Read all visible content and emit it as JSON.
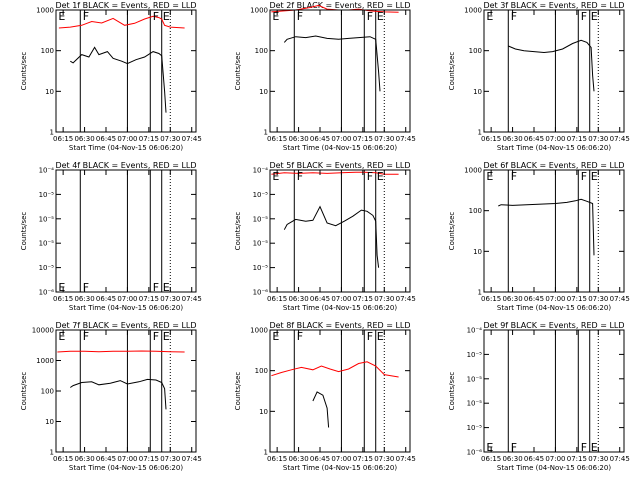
{
  "chart_data": [
    {
      "type": "line",
      "title": "Det 1f BLACK = Events, RED = LLD",
      "xlabel": "Start Time (04-Nov-15 06:06:20)",
      "ylabel": "Counts/sec",
      "yscale": "log",
      "ylim": [
        1,
        1000
      ],
      "ytick_labels": [
        "1",
        "10",
        "100",
        "1000"
      ],
      "xlim": [
        "06:10",
        "07:48"
      ],
      "xtick_labels": [
        "06:15",
        "06:30",
        "06:45",
        "07:00",
        "07:15",
        "07:30",
        "07:45"
      ],
      "solid_vlines": [
        "06:27",
        "07:00",
        "07:16",
        "07:24"
      ],
      "dotted_vlines": [
        "07:30"
      ],
      "flags": [
        {
          "t": "06:11",
          "label": "E",
          "pos": "top"
        },
        {
          "t": "06:28",
          "label": "F",
          "pos": "top"
        },
        {
          "t": "07:17",
          "label": "F",
          "pos": "top"
        },
        {
          "t": "07:24",
          "label": "E",
          "pos": "top"
        }
      ],
      "series": [
        {
          "color": "#ff0000",
          "t": [
            "06:12",
            "06:20",
            "06:28",
            "06:35",
            "06:42",
            "06:50",
            "06:58",
            "07:05",
            "07:12",
            "07:18",
            "07:22",
            "07:24",
            "07:26",
            "07:30",
            "07:40"
          ],
          "v": [
            360,
            380,
            420,
            520,
            480,
            620,
            420,
            470,
            600,
            700,
            650,
            600,
            420,
            380,
            360
          ]
        },
        {
          "color": "#000000",
          "t": [
            "06:20",
            "06:22",
            "06:28",
            "06:33",
            "06:37",
            "06:40",
            "06:46",
            "06:50",
            "06:56",
            "07:00",
            "07:06",
            "07:12",
            "07:18",
            "07:22",
            "07:24",
            "07:26",
            "07:27"
          ],
          "v": [
            55,
            50,
            80,
            70,
            120,
            80,
            95,
            65,
            55,
            48,
            60,
            70,
            95,
            85,
            75,
            10,
            3
          ]
        }
      ]
    },
    {
      "type": "line",
      "title": "Det 2f BLACK = Events, RED = LLD",
      "xlabel": "Start Time (04-Nov-15 06:06:20)",
      "ylabel": "Counts/sec",
      "yscale": "log",
      "ylim": [
        1,
        1000
      ],
      "ytick_labels": [
        "1",
        "10",
        "100",
        "1000"
      ],
      "xlim": [
        "06:10",
        "07:48"
      ],
      "xtick_labels": [
        "06:15",
        "06:30",
        "06:45",
        "07:00",
        "07:15",
        "07:30",
        "07:45"
      ],
      "solid_vlines": [
        "06:27",
        "07:00",
        "07:16",
        "07:24"
      ],
      "dotted_vlines": [
        "07:30"
      ],
      "flags": [
        {
          "t": "06:11",
          "label": "E",
          "pos": "top"
        },
        {
          "t": "06:28",
          "label": "F",
          "pos": "top"
        },
        {
          "t": "07:17",
          "label": "F",
          "pos": "top"
        },
        {
          "t": "07:24",
          "label": "E",
          "pos": "top"
        }
      ],
      "series": [
        {
          "color": "#ff0000",
          "t": [
            "06:11",
            "06:20",
            "06:28",
            "06:38",
            "06:44",
            "06:50",
            "06:58",
            "07:05",
            "07:12",
            "07:20",
            "07:30",
            "07:40"
          ],
          "v": [
            900,
            950,
            1000,
            1150,
            1300,
            1050,
            1000,
            1000,
            1050,
            950,
            900,
            880
          ]
        },
        {
          "color": "#000000",
          "t": [
            "06:20",
            "06:22",
            "06:28",
            "06:35",
            "06:42",
            "06:50",
            "06:58",
            "07:05",
            "07:12",
            "07:20",
            "07:24",
            "07:26",
            "07:27"
          ],
          "v": [
            160,
            190,
            220,
            210,
            230,
            200,
            190,
            200,
            210,
            220,
            190,
            30,
            10
          ]
        }
      ]
    },
    {
      "type": "line",
      "title": "Det 3f BLACK = Events, RED = LLD",
      "xlabel": "Start Time (04-Nov-15 06:06:20)",
      "ylabel": "Counts/sec",
      "yscale": "log",
      "ylim": [
        1,
        1000
      ],
      "ytick_labels": [
        "1",
        "10",
        "100",
        "1000"
      ],
      "xlim": [
        "06:10",
        "07:48"
      ],
      "xtick_labels": [
        "06:15",
        "06:30",
        "06:45",
        "07:00",
        "07:15",
        "07:30",
        "07:45"
      ],
      "solid_vlines": [
        "06:27",
        "07:00",
        "07:16",
        "07:24"
      ],
      "dotted_vlines": [
        "07:30"
      ],
      "flags": [
        {
          "t": "06:11",
          "label": "E",
          "pos": "top"
        },
        {
          "t": "06:28",
          "label": "F",
          "pos": "top"
        },
        {
          "t": "07:17",
          "label": "F",
          "pos": "top"
        },
        {
          "t": "07:24",
          "label": "E",
          "pos": "top"
        }
      ],
      "series": [
        {
          "color": "#000000",
          "t": [
            "06:27",
            "06:32",
            "06:38",
            "06:45",
            "06:52",
            "06:58",
            "07:05",
            "07:12",
            "07:18",
            "07:22",
            "07:25",
            "07:26",
            "07:27"
          ],
          "v": [
            130,
            110,
            100,
            95,
            90,
            95,
            110,
            150,
            180,
            160,
            120,
            25,
            10
          ]
        }
      ]
    },
    {
      "type": "line",
      "title": "Det 4f BLACK = Events, RED = LLD",
      "xlabel": "Start Time (04-Nov-15 06:06:20)",
      "ylabel": "Counts/sec",
      "yscale": "log",
      "ylim": [
        1e-06,
        0.0001
      ],
      "ytick_labels": [
        "10⁻⁶",
        "10⁻⁵",
        "10⁻⁵",
        "10⁻⁵",
        "10⁻⁵",
        "10⁻⁴"
      ],
      "xlim": [
        "06:10",
        "07:48"
      ],
      "xtick_labels": [
        "06:15",
        "06:30",
        "06:45",
        "07:00",
        "07:15",
        "07:30",
        "07:45"
      ],
      "solid_vlines": [
        "06:27",
        "07:00",
        "07:16",
        "07:24"
      ],
      "dotted_vlines": [
        "07:30"
      ],
      "flags": [
        {
          "t": "06:11",
          "label": "E",
          "pos": "bottom"
        },
        {
          "t": "06:28",
          "label": "F",
          "pos": "bottom"
        },
        {
          "t": "07:17",
          "label": "F",
          "pos": "bottom"
        },
        {
          "t": "07:24",
          "label": "E",
          "pos": "bottom"
        }
      ],
      "series": []
    },
    {
      "type": "line",
      "title": "Det 5f BLACK = Events, RED = LLD",
      "xlabel": "Start Time (04-Nov-15 06:06:20)",
      "ylabel": "Counts/sec",
      "yscale": "log",
      "ylim": [
        1e-06,
        0.0001
      ],
      "ytick_labels": [
        "10⁻⁶",
        "10⁻⁵",
        "10⁻⁵",
        "10⁻⁵",
        "10⁻⁵",
        "10⁻⁴"
      ],
      "xlim": [
        "06:10",
        "07:48"
      ],
      "xtick_labels": [
        "06:15",
        "06:30",
        "06:45",
        "07:00",
        "07:15",
        "07:30",
        "07:45"
      ],
      "solid_vlines": [
        "06:27",
        "07:00",
        "07:16",
        "07:24"
      ],
      "dotted_vlines": [
        "07:30"
      ],
      "flags": [
        {
          "t": "06:11",
          "label": "E",
          "pos": "top"
        },
        {
          "t": "06:28",
          "label": "F",
          "pos": "top"
        },
        {
          "t": "07:17",
          "label": "F",
          "pos": "top"
        },
        {
          "t": "07:24",
          "label": "E",
          "pos": "top"
        }
      ],
      "series": [
        {
          "color": "#ff0000",
          "t": [
            "06:11",
            "06:20",
            "06:30",
            "06:40",
            "06:50",
            "07:00",
            "07:10",
            "07:16",
            "07:24",
            "07:30",
            "07:40"
          ],
          "v": [
            8.5e-05,
            9e-05,
            8.8e-05,
            9e-05,
            8.8e-05,
            9e-05,
            9.2e-05,
            9.2e-05,
            9e-05,
            8.5e-05,
            8.5e-05
          ]
        },
        {
          "color": "#000000",
          "t": [
            "06:20",
            "06:22",
            "06:28",
            "06:35",
            "06:40",
            "06:45",
            "06:50",
            "06:56",
            "07:02",
            "07:08",
            "07:14",
            "07:18",
            "07:22",
            "07:24",
            "07:25",
            "07:26"
          ],
          "v": [
            1.05e-05,
            1.28e-05,
            1.55e-05,
            1.45e-05,
            1.5e-05,
            2.5e-05,
            1.35e-05,
            1.22e-05,
            1.45e-05,
            1.75e-05,
            2.2e-05,
            2.1e-05,
            1.8e-05,
            1.45e-05,
            4e-06,
            2.5e-06
          ]
        }
      ]
    },
    {
      "type": "line",
      "title": "Det 6f BLACK = Events, RED = LLD",
      "xlabel": "Start Time (04-Nov-15 06:06:20)",
      "ylabel": "Counts/sec",
      "yscale": "log",
      "ylim": [
        1,
        1000
      ],
      "ytick_labels": [
        "1",
        "10",
        "100",
        "1000"
      ],
      "xlim": [
        "06:10",
        "07:48"
      ],
      "xtick_labels": [
        "06:15",
        "06:30",
        "06:45",
        "07:00",
        "07:15",
        "07:30",
        "07:45"
      ],
      "solid_vlines": [
        "06:27",
        "07:00",
        "07:16",
        "07:24"
      ],
      "dotted_vlines": [
        "07:30"
      ],
      "flags": [
        {
          "t": "06:11",
          "label": "E",
          "pos": "top"
        },
        {
          "t": "06:28",
          "label": "F",
          "pos": "top"
        },
        {
          "t": "07:17",
          "label": "F",
          "pos": "top"
        },
        {
          "t": "07:24",
          "label": "E",
          "pos": "top"
        }
      ],
      "series": [
        {
          "color": "#000000",
          "t": [
            "06:20",
            "06:22",
            "06:30",
            "06:40",
            "06:50",
            "07:00",
            "07:08",
            "07:14",
            "07:18",
            "07:22",
            "07:26",
            "07:27"
          ],
          "v": [
            130,
            140,
            135,
            140,
            145,
            150,
            160,
            175,
            190,
            170,
            150,
            8
          ]
        }
      ]
    },
    {
      "type": "line",
      "title": "Det 7f BLACK = Events, RED = LLD",
      "xlabel": "Start Time (04-Nov-15 06:06:20)",
      "ylabel": "Counts/sec",
      "yscale": "log",
      "ylim": [
        1,
        10000
      ],
      "ytick_labels": [
        "1",
        "10",
        "100",
        "1000",
        "10000"
      ],
      "xlim": [
        "06:10",
        "07:48"
      ],
      "xtick_labels": [
        "06:15",
        "06:30",
        "06:45",
        "07:00",
        "07:15",
        "07:30",
        "07:45"
      ],
      "solid_vlines": [
        "06:27",
        "07:00",
        "07:16",
        "07:24"
      ],
      "dotted_vlines": [
        "07:30"
      ],
      "flags": [
        {
          "t": "06:11",
          "label": "E",
          "pos": "top"
        },
        {
          "t": "06:28",
          "label": "F",
          "pos": "top"
        },
        {
          "t": "07:17",
          "label": "F",
          "pos": "top"
        },
        {
          "t": "07:24",
          "label": "E",
          "pos": "top"
        }
      ],
      "series": [
        {
          "color": "#ff0000",
          "t": [
            "06:11",
            "06:20",
            "06:30",
            "06:40",
            "06:50",
            "07:00",
            "07:10",
            "07:20",
            "07:30",
            "07:40"
          ],
          "v": [
            1900,
            2000,
            2000,
            1950,
            2000,
            2000,
            2050,
            2000,
            1950,
            1900
          ]
        },
        {
          "color": "#000000",
          "t": [
            "06:20",
            "06:22",
            "06:28",
            "06:35",
            "06:40",
            "06:48",
            "06:55",
            "07:00",
            "07:08",
            "07:14",
            "07:20",
            "07:24",
            "07:26",
            "07:27"
          ],
          "v": [
            130,
            150,
            190,
            200,
            160,
            180,
            220,
            170,
            200,
            240,
            230,
            190,
            120,
            25
          ]
        }
      ]
    },
    {
      "type": "line",
      "title": "Det 8f BLACK = Events, RED = LLD",
      "xlabel": "Start Time (04-Nov-15 06:06:20)",
      "ylabel": "Counts/sec",
      "yscale": "log",
      "ylim": [
        1,
        1000
      ],
      "ytick_labels": [
        "1",
        "10",
        "100",
        "1000"
      ],
      "xlim": [
        "06:10",
        "07:48"
      ],
      "xtick_labels": [
        "06:15",
        "06:30",
        "06:45",
        "07:00",
        "07:15",
        "07:30",
        "07:45"
      ],
      "solid_vlines": [
        "06:27",
        "07:00",
        "07:16",
        "07:24"
      ],
      "dotted_vlines": [
        "07:30"
      ],
      "flags": [
        {
          "t": "06:11",
          "label": "E",
          "pos": "top"
        },
        {
          "t": "06:28",
          "label": "F",
          "pos": "top"
        },
        {
          "t": "07:17",
          "label": "F",
          "pos": "top"
        },
        {
          "t": "07:24",
          "label": "E",
          "pos": "top"
        }
      ],
      "series": [
        {
          "color": "#ff0000",
          "t": [
            "06:11",
            "06:18",
            "06:25",
            "06:32",
            "06:40",
            "06:46",
            "06:52",
            "06:58",
            "07:05",
            "07:12",
            "07:18",
            "07:24",
            "07:30",
            "07:40"
          ],
          "v": [
            75,
            90,
            105,
            120,
            105,
            130,
            110,
            95,
            110,
            150,
            165,
            130,
            80,
            70
          ]
        },
        {
          "color": "#000000",
          "t": [
            "06:40",
            "06:43",
            "06:47",
            "06:50",
            "06:51"
          ],
          "v": [
            18,
            30,
            25,
            12,
            4
          ]
        }
      ]
    },
    {
      "type": "line",
      "title": "Det 9f BLACK = Events, RED = LLD",
      "xlabel": "Start Time (04-Nov-15 06:06:20)",
      "ylabel": "Counts/sec",
      "yscale": "log",
      "ylim": [
        1e-06,
        0.0001
      ],
      "ytick_labels": [
        "10⁻⁶",
        "10⁻⁵",
        "10⁻⁵",
        "10⁻⁵",
        "10⁻⁵",
        "10⁻⁴"
      ],
      "xlim": [
        "06:10",
        "07:48"
      ],
      "xtick_labels": [
        "06:15",
        "06:30",
        "06:45",
        "07:00",
        "07:15",
        "07:30",
        "07:45"
      ],
      "solid_vlines": [
        "06:27",
        "07:00",
        "07:16",
        "07:24"
      ],
      "dotted_vlines": [
        "07:30"
      ],
      "flags": [
        {
          "t": "06:11",
          "label": "E",
          "pos": "bottom"
        },
        {
          "t": "06:28",
          "label": "F",
          "pos": "bottom"
        },
        {
          "t": "07:17",
          "label": "F",
          "pos": "bottom"
        },
        {
          "t": "07:24",
          "label": "E",
          "pos": "bottom"
        }
      ],
      "series": []
    }
  ]
}
